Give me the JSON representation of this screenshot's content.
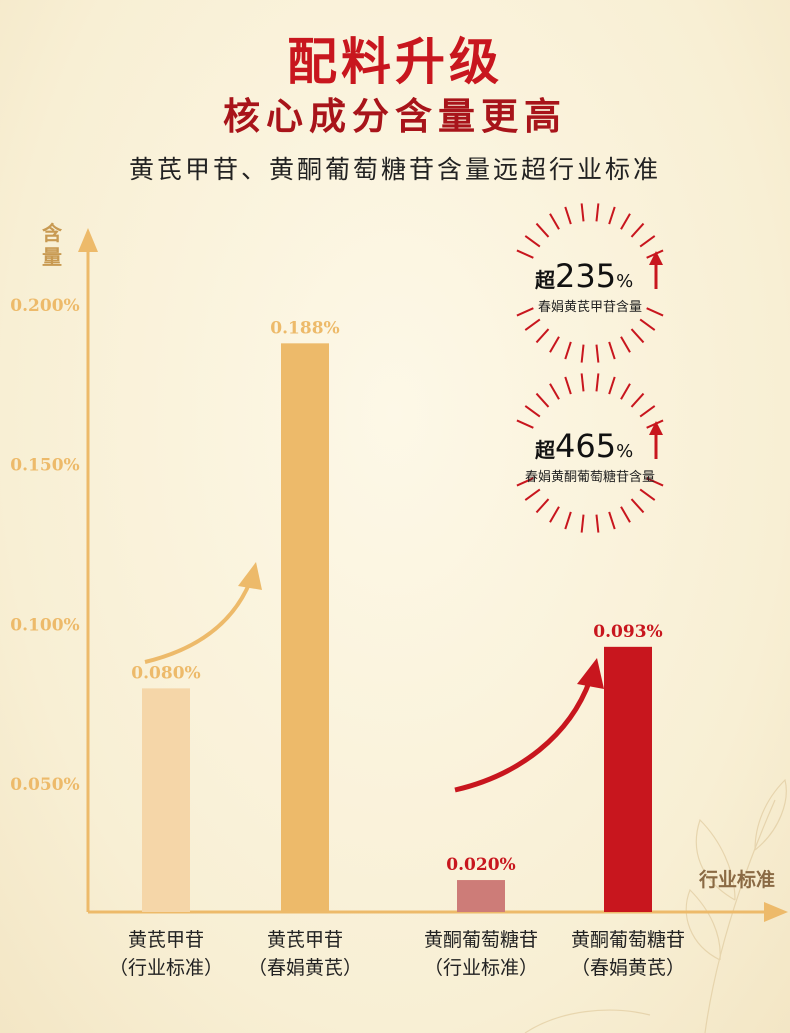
{
  "header": {
    "title_line1": "配料升级",
    "title_line2": "核心成分含量更高",
    "subtitle": "黄芪甲苷、黄酮葡萄糖苷含量远超行业标准"
  },
  "colors": {
    "industry_light": "#f5d6a8",
    "brand_gold": "#edba6a",
    "industry_rose": "#cd7c78",
    "brand_red": "#c8161e",
    "axis": "#edba6a"
  },
  "badges": [
    {
      "prefix": "超",
      "value": "235",
      "unit": "%",
      "caption": "春娟黄芪甲苷含量"
    },
    {
      "prefix": "超",
      "value": "465",
      "unit": "%",
      "caption": "春娟黄酮葡萄糖苷含量"
    }
  ],
  "chart_data": {
    "type": "bar",
    "ylabel": "含量",
    "xlabel": "行业标准",
    "ylim": [
      0.01,
      0.215
    ],
    "yticks": [
      0.05,
      0.1,
      0.15,
      0.2
    ],
    "ytick_labels": [
      "0.050%",
      "0.100%",
      "0.150%",
      "0.200%"
    ],
    "bars": [
      {
        "line1": "黄芪甲苷",
        "line2": "（行业标准）",
        "value": 0.08,
        "label": "0.080%",
        "color": "#f5d6a8",
        "label_color": "#edba6a"
      },
      {
        "line1": "黄芪甲苷",
        "line2": "（春娟黄芪）",
        "value": 0.188,
        "label": "0.188%",
        "color": "#edba6a",
        "label_color": "#edba6a"
      },
      {
        "line1": "黄酮葡萄糖苷",
        "line2": "（行业标准）",
        "value": 0.02,
        "label": "0.020%",
        "color": "#cd7c78",
        "label_color": "#c8161e"
      },
      {
        "line1": "黄酮葡萄糖苷",
        "line2": "（春娟黄芪）",
        "value": 0.093,
        "label": "0.093%",
        "color": "#c8161e",
        "label_color": "#c8161e"
      }
    ]
  }
}
